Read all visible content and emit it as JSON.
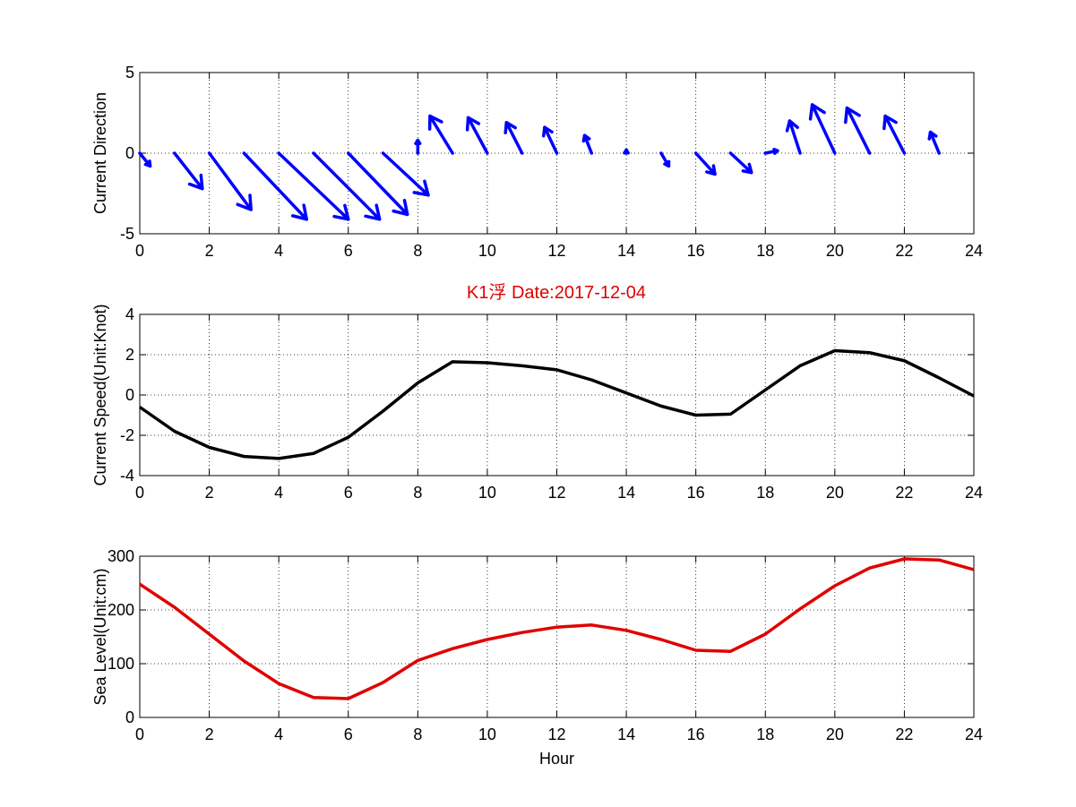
{
  "figure_title": "K1浮    Date:2017-12-04",
  "colors": {
    "direction": "#0000ff",
    "speed": "#000000",
    "sea_level": "#e00000",
    "title": "#e00000"
  },
  "chart_data": [
    {
      "type": "quiver",
      "ylabel": "Current Direction",
      "xlabel": "",
      "xlim": [
        0,
        24
      ],
      "ylim": [
        -5,
        5
      ],
      "xticks": [
        0,
        2,
        4,
        6,
        8,
        10,
        12,
        14,
        16,
        18,
        20,
        22,
        24
      ],
      "yticks": [
        -5,
        0,
        5
      ],
      "grid": true,
      "series": [
        {
          "x": [
            0,
            1,
            2,
            3,
            4,
            5,
            6,
            7,
            8,
            9,
            10,
            11,
            12,
            13,
            14,
            15,
            16,
            17,
            18,
            19,
            20,
            21,
            22,
            23
          ],
          "u": [
            0.3,
            0.8,
            1.2,
            1.8,
            2.0,
            1.9,
            1.7,
            1.3,
            0.0,
            -0.65,
            -0.55,
            -0.45,
            -0.35,
            -0.2,
            0.0,
            0.22,
            0.55,
            0.6,
            0.35,
            -0.3,
            -0.65,
            -0.65,
            -0.55,
            -0.25
          ],
          "v": [
            -0.8,
            -2.2,
            -3.5,
            -4.1,
            -4.1,
            -4.1,
            -3.8,
            -2.6,
            0.8,
            2.3,
            2.2,
            1.9,
            1.6,
            1.1,
            0.2,
            -0.8,
            -1.3,
            -1.2,
            0.15,
            2.0,
            3.0,
            2.8,
            2.3,
            1.3
          ]
        }
      ]
    },
    {
      "type": "line",
      "title": "K1浮    Date:2017-12-04",
      "ylabel": "Current Speed(Unit:Knot)",
      "xlabel": "",
      "xlim": [
        0,
        24
      ],
      "ylim": [
        -4,
        4
      ],
      "xticks": [
        0,
        2,
        4,
        6,
        8,
        10,
        12,
        14,
        16,
        18,
        20,
        22,
        24
      ],
      "yticks": [
        -4,
        -2,
        0,
        2,
        4
      ],
      "grid": true,
      "series": [
        {
          "x": [
            0,
            1,
            2,
            3,
            4,
            5,
            6,
            7,
            8,
            9,
            10,
            11,
            12,
            13,
            14,
            15,
            16,
            17,
            18,
            19,
            20,
            21,
            22,
            23,
            24
          ],
          "y": [
            -0.6,
            -1.8,
            -2.6,
            -3.05,
            -3.15,
            -2.9,
            -2.1,
            -0.8,
            0.6,
            1.65,
            1.6,
            1.45,
            1.25,
            0.75,
            0.1,
            -0.55,
            -1.0,
            -0.95,
            0.25,
            1.45,
            2.2,
            2.1,
            1.7,
            0.85,
            -0.05
          ]
        }
      ]
    },
    {
      "type": "line",
      "ylabel": "Sea Level(Unit:cm)",
      "xlabel": "Hour",
      "xlim": [
        0,
        24
      ],
      "ylim": [
        0,
        300
      ],
      "xticks": [
        0,
        2,
        4,
        6,
        8,
        10,
        12,
        14,
        16,
        18,
        20,
        22,
        24
      ],
      "yticks": [
        0,
        100,
        200,
        300
      ],
      "grid": true,
      "series": [
        {
          "x": [
            0,
            1,
            2,
            3,
            4,
            5,
            6,
            7,
            8,
            9,
            10,
            11,
            12,
            13,
            14,
            15,
            16,
            17,
            18,
            19,
            20,
            21,
            22,
            23,
            24
          ],
          "y": [
            248,
            205,
            155,
            105,
            63,
            37,
            35,
            65,
            106,
            128,
            145,
            158,
            168,
            172,
            162,
            145,
            125,
            123,
            155,
            202,
            245,
            278,
            295,
            293,
            275
          ]
        }
      ]
    }
  ]
}
